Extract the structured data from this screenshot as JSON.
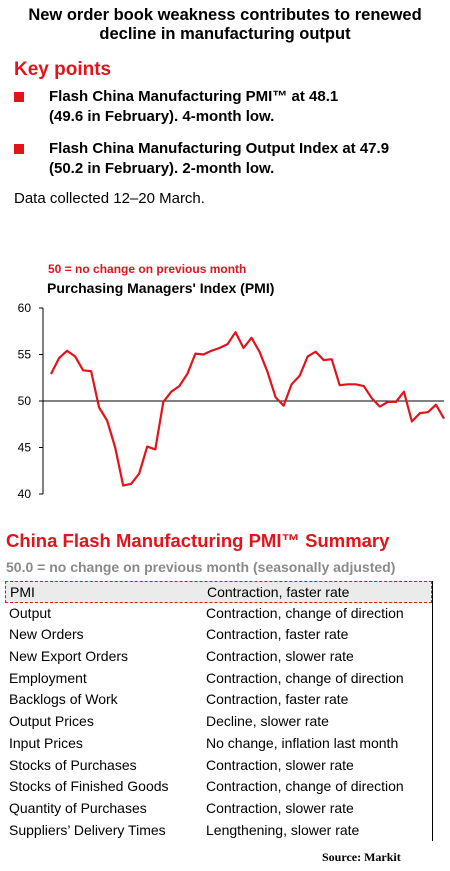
{
  "headline": {
    "line1": "New order book weakness contributes to renewed",
    "line2": "decline in manufacturing output"
  },
  "key_points": {
    "title": "Key points",
    "bullets": [
      {
        "line1": "Flash China Manufacturing PMI™ at 48.1",
        "line2": "(49.6 in February). 4-month low."
      },
      {
        "line1": "Flash China Manufacturing Output Index at 47.9",
        "line2": "(50.2 in February). 2-month low."
      }
    ],
    "collected": "Data collected 12–20 March."
  },
  "chart": {
    "note": "50 =  no change on previous month",
    "title": "Purchasing Managers' Index (PMI)"
  },
  "chart_data": {
    "type": "line",
    "title": "Purchasing Managers' Index (PMI)",
    "ylim": [
      40,
      60
    ],
    "yticks": [
      "60",
      "55",
      "50",
      "45",
      "40"
    ],
    "reference_line": 50,
    "series": [
      {
        "values": [
          52.9,
          54.6,
          55.4,
          54.8,
          53.3,
          53.2,
          49.3,
          47.9,
          45.0,
          40.9,
          41.1,
          42.2,
          45.1,
          44.8,
          49.9,
          51.0,
          51.6,
          52.9,
          55.1,
          55.0,
          55.4,
          55.7,
          56.1,
          57.4,
          55.7,
          56.8,
          55.3,
          53.1,
          50.4,
          49.5,
          51.8,
          52.7,
          54.8,
          55.3,
          54.4,
          54.5,
          51.7,
          51.8,
          51.8,
          51.6,
          50.3,
          49.4,
          49.9,
          49.9,
          51.0,
          47.8,
          48.7,
          48.8,
          49.6,
          48.1
        ],
        "color": "#e3131b"
      }
    ]
  },
  "summary": {
    "title": "China Flash Manufacturing PMI™ Summary",
    "subtitle": "50.0 = no change on previous month (seasonally adjusted)",
    "rows": [
      {
        "label": "PMI",
        "value": "Contraction, faster rate"
      },
      {
        "label": "Output",
        "value": "Contraction, change of direction"
      },
      {
        "label": "New Orders",
        "value": "Contraction, faster rate"
      },
      {
        "label": "New Export Orders",
        "value": "Contraction, slower rate"
      },
      {
        "label": "Employment",
        "value": "Contraction, change of direction"
      },
      {
        "label": "Backlogs of Work",
        "value": "Contraction, faster rate"
      },
      {
        "label": "Output Prices",
        "value": "Decline, slower rate"
      },
      {
        "label": "Input Prices",
        "value": "No change, inflation last month"
      },
      {
        "label": "Stocks of Purchases",
        "value": "Contraction, slower rate"
      },
      {
        "label": "Stocks of Finished Goods",
        "value": "Contraction, change of direction"
      },
      {
        "label": "Quantity of Purchases",
        "value": "Contraction, slower rate"
      },
      {
        "label": "Suppliers’ Delivery Times",
        "value": "Lengthening, slower rate"
      }
    ]
  },
  "source": "Source:  Markit"
}
